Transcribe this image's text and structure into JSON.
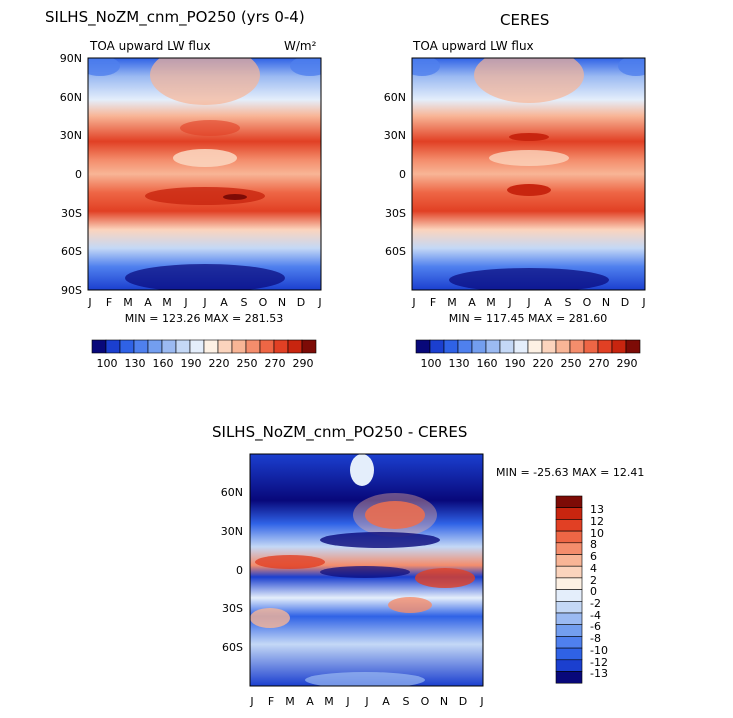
{
  "chart_data": [
    {
      "type": "heatmap",
      "title": "SILHS_NoZM_cnm_PO250 (yrs 0-4)",
      "subtitle": "TOA upward LW flux",
      "units": "W/m²",
      "min_label": "MIN = 123.26 MAX = 281.53",
      "min": 123.26,
      "max": 281.53,
      "x_ticks": [
        "J",
        "F",
        "M",
        "A",
        "M",
        "J",
        "J",
        "A",
        "S",
        "O",
        "N",
        "D",
        "J"
      ],
      "y_ticks": [
        "90N",
        "60N",
        "30N",
        "0",
        "30S",
        "60S",
        "90S"
      ],
      "ylim": [
        -90,
        90
      ]
    },
    {
      "type": "heatmap",
      "title": "CERES",
      "subtitle": "TOA upward LW flux",
      "min_label": "MIN = 117.45 MAX = 281.60",
      "min": 117.45,
      "max": 281.6,
      "x_ticks": [
        "J",
        "F",
        "M",
        "A",
        "M",
        "J",
        "J",
        "A",
        "S",
        "O",
        "N",
        "D",
        "J"
      ],
      "y_ticks": [
        "60N",
        "30N",
        "0",
        "30S",
        "60S"
      ],
      "ylim": [
        -90,
        90
      ]
    },
    {
      "type": "heatmap",
      "title": "SILHS_NoZM_cnm_PO250 - CERES",
      "min_label": "MIN = -25.63 MAX =  12.41",
      "min": -25.63,
      "max": 12.41,
      "x_ticks": [
        "J",
        "F",
        "M",
        "A",
        "M",
        "J",
        "J",
        "A",
        "S",
        "O",
        "N",
        "D",
        "J"
      ],
      "y_ticks": [
        "60N",
        "30N",
        "0",
        "30S",
        "60S"
      ],
      "ylim": [
        -90,
        90
      ]
    }
  ],
  "colorbar_abs": {
    "labels": [
      "100",
      "130",
      "160",
      "190",
      "220",
      "250",
      "270",
      "290"
    ],
    "colors": [
      "#08087a",
      "#1b3fcf",
      "#2f62e6",
      "#4f80ee",
      "#739eef",
      "#9bbaf2",
      "#c4d8f6",
      "#e4eefb",
      "#fdf1e4",
      "#fbd4bd",
      "#f8b596",
      "#f48d6c",
      "#ee6645",
      "#e14024",
      "#c8250f",
      "#7d0b06"
    ]
  },
  "colorbar_diff": {
    "labels": [
      "13",
      "12",
      "10",
      "8",
      "6",
      "4",
      "2",
      "0",
      "-2",
      "-4",
      "-6",
      "-8",
      "-10",
      "-12",
      "-13"
    ],
    "colors": [
      "#7d0b06",
      "#c8250f",
      "#e14024",
      "#ee6645",
      "#f48d6c",
      "#f8b596",
      "#fbd4bd",
      "#fdf1e4",
      "#e4eefb",
      "#c4d8f6",
      "#9bbaf2",
      "#739eef",
      "#4f80ee",
      "#2f62e6",
      "#1b3fcf",
      "#08087a"
    ]
  }
}
